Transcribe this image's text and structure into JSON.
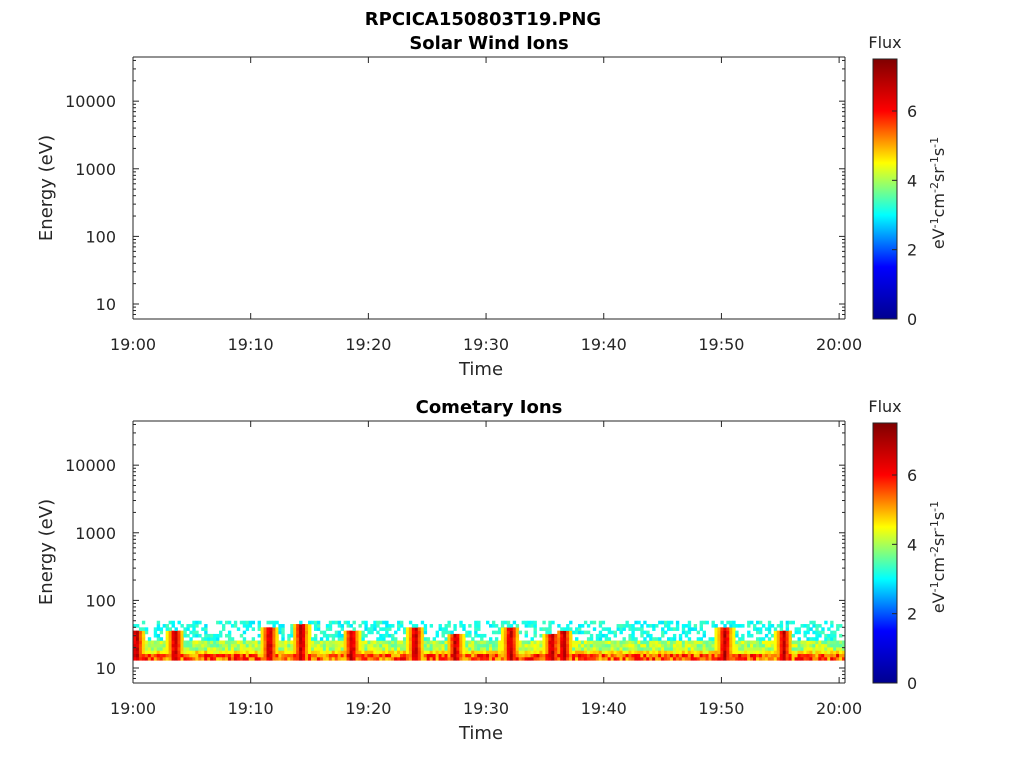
{
  "figure": {
    "title": "RPCICA150803T19.PNG"
  },
  "colorbar": {
    "label": "Flux",
    "unit_base": [
      "eV",
      "cm",
      "sr",
      "s"
    ],
    "unit_exp": [
      "-1",
      "-2",
      "-1",
      "-1"
    ],
    "range": [
      0,
      7.5
    ],
    "ticks": [
      "0",
      "2",
      "4",
      "6"
    ],
    "colormap": "jet",
    "colors": [
      "#00008f",
      "#0000ff",
      "#00ffff",
      "#ffff00",
      "#ff0000",
      "#800000"
    ]
  },
  "chart_data": [
    {
      "type": "heatmap",
      "title": "Solar Wind Ions",
      "xlabel": "Time",
      "ylabel": "Energy (eV)",
      "x_ticks": [
        "19:00",
        "19:10",
        "19:20",
        "19:30",
        "19:40",
        "19:50",
        "20:00"
      ],
      "y_ticks": [
        "10",
        "100",
        "1000",
        "10000"
      ],
      "y_scale": "log",
      "ylim": [
        6,
        45000
      ],
      "xlim_minutes": [
        0,
        60.5
      ],
      "grid": false,
      "bursts": []
    },
    {
      "type": "heatmap",
      "title": "Cometary Ions",
      "xlabel": "Time",
      "ylabel": "Energy (eV)",
      "x_ticks": [
        "19:00",
        "19:10",
        "19:20",
        "19:30",
        "19:40",
        "19:50",
        "20:00"
      ],
      "y_ticks": [
        "10",
        "100",
        "1000",
        "10000"
      ],
      "y_scale": "log",
      "ylim": [
        6,
        45000
      ],
      "xlim_minutes": [
        0,
        60.5
      ],
      "grid": false,
      "baseline_energy_eV": [
        13,
        50
      ],
      "bursts": [
        {
          "time_min": 0.3,
          "peak_energy_eV": 36,
          "flux": 7
        },
        {
          "time_min": 3.6,
          "peak_energy_eV": 34,
          "flux": 6.5
        },
        {
          "time_min": 11.6,
          "peak_energy_eV": 40,
          "flux": 7.2
        },
        {
          "time_min": 14.3,
          "peak_energy_eV": 45,
          "flux": 7
        },
        {
          "time_min": 18.6,
          "peak_energy_eV": 36,
          "flux": 6.8
        },
        {
          "time_min": 24.0,
          "peak_energy_eV": 38,
          "flux": 7.2
        },
        {
          "time_min": 27.4,
          "peak_energy_eV": 32,
          "flux": 6.8
        },
        {
          "time_min": 32.1,
          "peak_energy_eV": 40,
          "flux": 7.2
        },
        {
          "time_min": 35.6,
          "peak_energy_eV": 33,
          "flux": 6.5
        },
        {
          "time_min": 36.6,
          "peak_energy_eV": 35,
          "flux": 6.6
        },
        {
          "time_min": 50.3,
          "peak_energy_eV": 42,
          "flux": 7.2
        },
        {
          "time_min": 55.3,
          "peak_energy_eV": 36,
          "flux": 7
        }
      ]
    }
  ]
}
